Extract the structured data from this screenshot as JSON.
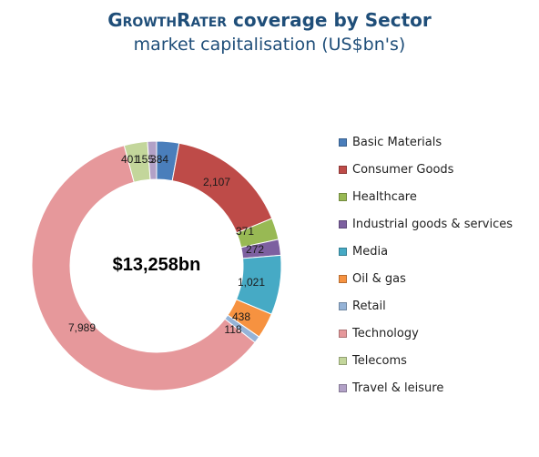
{
  "header": {
    "title_brand": "GrowthRater",
    "title_rest": " coverage by Sector",
    "subtitle": "market capitalisation (US$bn's)"
  },
  "chart_data": {
    "type": "pie",
    "variant": "doughnut",
    "center_label": "$13,258bn",
    "legend_position": "right",
    "series": [
      {
        "name": "Basic Materials",
        "value": 384,
        "label": "384",
        "color": "#4a7ebb"
      },
      {
        "name": "Consumer Goods",
        "value": 2107,
        "label": "2,107",
        "color": "#be4b48"
      },
      {
        "name": "Healthcare",
        "value": 371,
        "label": "371",
        "color": "#98b954"
      },
      {
        "name": "Industrial goods & services",
        "value": 272,
        "label": "272",
        "color": "#7d60a0"
      },
      {
        "name": "Media",
        "value": 1021,
        "label": "1,021",
        "color": "#46aac5"
      },
      {
        "name": "Oil & gas",
        "value": 438,
        "label": "438",
        "color": "#f69240"
      },
      {
        "name": "Retail",
        "value": 118,
        "label": "118",
        "color": "#95b3d7"
      },
      {
        "name": "Technology",
        "value": 7989,
        "label": "7,989",
        "color": "#e6989b"
      },
      {
        "name": "Telecoms",
        "value": 401,
        "label": "401",
        "color": "#c3d69b"
      },
      {
        "name": "Travel & leisure",
        "value": 155,
        "label": "155",
        "color": "#b2a1c7"
      }
    ]
  }
}
